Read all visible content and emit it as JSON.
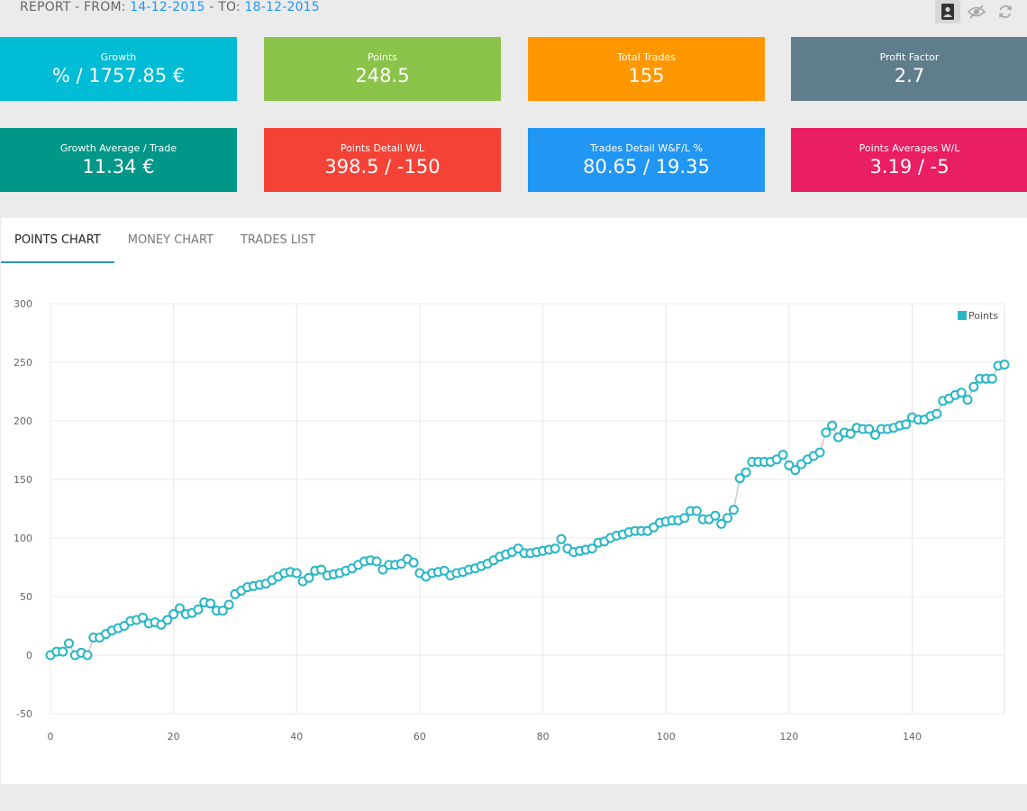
{
  "header": {
    "prefix": "REPORT - FROM: ",
    "from_date": "14-12-2015",
    "mid": " - TO: ",
    "to_date": "18-12-2015"
  },
  "toolbar": {
    "icons": [
      "image-icon",
      "eye-off-icon",
      "refresh-icon"
    ]
  },
  "cards": [
    {
      "label": "Growth",
      "value": "% / 1757.85 €",
      "color": "#00bcd4"
    },
    {
      "label": "Points",
      "value": "248.5",
      "color": "#8bc34a"
    },
    {
      "label": "Total Trades",
      "value": "155",
      "color": "#ff9800"
    },
    {
      "label": "Profit Factor",
      "value": "2.7",
      "color": "#607d8b"
    },
    {
      "label": "Growth Average / Trade",
      "value": "11.34 €",
      "color": "#009688"
    },
    {
      "label": "Points Detail W/L",
      "value": "398.5 / -150",
      "color": "#f44336"
    },
    {
      "label": "Trades Detail W&F/L %",
      "value": "80.65 / 19.35",
      "color": "#2196f3"
    },
    {
      "label": "Points Averages W/L",
      "value": "3.19 / -5",
      "color": "#e91e63"
    }
  ],
  "tabs": [
    {
      "label": "POINTS CHART",
      "active": true
    },
    {
      "label": "MONEY CHART",
      "active": false
    },
    {
      "label": "TRADES LIST",
      "active": false
    }
  ],
  "chart_data": {
    "type": "line",
    "legend": "Points",
    "legend_position": "top-right",
    "grid": true,
    "xlim": [
      0,
      155
    ],
    "ylim": [
      -50,
      300
    ],
    "x_ticks": [
      0,
      20,
      40,
      60,
      80,
      100,
      120,
      140
    ],
    "y_ticks": [
      300,
      250,
      200,
      150,
      100,
      50,
      0,
      -50
    ],
    "series_color": "#26b6c6",
    "x": [
      0,
      1,
      2,
      3,
      4,
      5,
      6,
      7,
      8,
      9,
      10,
      11,
      12,
      13,
      14,
      15,
      16,
      17,
      18,
      19,
      20,
      21,
      22,
      23,
      24,
      25,
      26,
      27,
      28,
      29,
      30,
      31,
      32,
      33,
      34,
      35,
      36,
      37,
      38,
      39,
      40,
      41,
      42,
      43,
      44,
      45,
      46,
      47,
      48,
      49,
      50,
      51,
      52,
      53,
      54,
      55,
      56,
      57,
      58,
      59,
      60,
      61,
      62,
      63,
      64,
      65,
      66,
      67,
      68,
      69,
      70,
      71,
      72,
      73,
      74,
      75,
      76,
      77,
      78,
      79,
      80,
      81,
      82,
      83,
      84,
      85,
      86,
      87,
      88,
      89,
      90,
      91,
      92,
      93,
      94,
      95,
      96,
      97,
      98,
      99,
      100,
      101,
      102,
      103,
      104,
      105,
      106,
      107,
      108,
      109,
      110,
      111,
      112,
      113,
      114,
      115,
      116,
      117,
      118,
      119,
      120,
      121,
      122,
      123,
      124,
      125,
      126,
      127,
      128,
      129,
      130,
      131,
      132,
      133,
      134,
      135,
      136,
      137,
      138,
      139,
      140,
      141,
      142,
      143,
      144,
      145,
      146,
      147,
      148,
      149,
      150,
      151,
      152,
      153,
      154,
      155
    ],
    "values": [
      0,
      3,
      3,
      10,
      0,
      2,
      0,
      15,
      15,
      18,
      21,
      23,
      25,
      29,
      30,
      32,
      27,
      28,
      26,
      30,
      35,
      40,
      35,
      36,
      39,
      45,
      44,
      38,
      38,
      43,
      52,
      55,
      58,
      59,
      60,
      61,
      64,
      67,
      70,
      71,
      70,
      63,
      66,
      72,
      73,
      68,
      69,
      70,
      72,
      74,
      77,
      80,
      81,
      80,
      73,
      77,
      77,
      78,
      82,
      79,
      70,
      67,
      70,
      71,
      72,
      68,
      70,
      71,
      73,
      74,
      76,
      78,
      81,
      84,
      86,
      88,
      91,
      87,
      87,
      88,
      89,
      90,
      91,
      99,
      91,
      88,
      89,
      90,
      91,
      96,
      97,
      100,
      102,
      103,
      105,
      106,
      106,
      106,
      109,
      113,
      114,
      115,
      115,
      117,
      123,
      123,
      116,
      116,
      119,
      112,
      117,
      124,
      151,
      156,
      165,
      165,
      165,
      165,
      167,
      171,
      162,
      158,
      163,
      167,
      170,
      173,
      190,
      196,
      186,
      190,
      189,
      194,
      193,
      193,
      188,
      193,
      193,
      194,
      196,
      197,
      203,
      201,
      201,
      204,
      206,
      217,
      219,
      222,
      224,
      218,
      229,
      236,
      236,
      236,
      247,
      248
    ]
  }
}
